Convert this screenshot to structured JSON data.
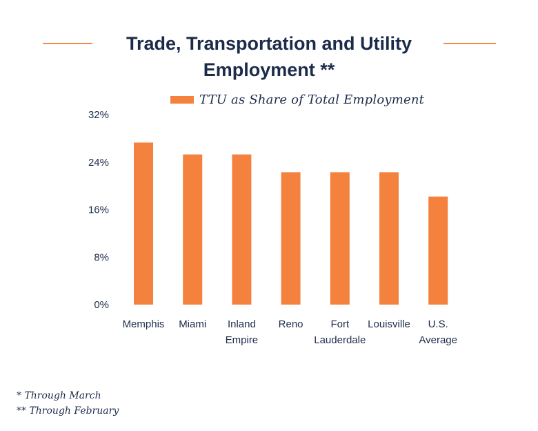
{
  "title_line1": "Trade, Transportation and Utility",
  "title_line2": "Employment **",
  "colors": {
    "bar": "#f5813e",
    "text": "#1c2b4a",
    "rule": "#f0884a"
  },
  "chart_data": {
    "type": "bar",
    "title": "Trade, Transportation and Utility Employment **",
    "legend": {
      "position": "top",
      "entries": [
        "TTU as Share of Total Employment"
      ]
    },
    "categories": [
      [
        "Memphis"
      ],
      [
        "Miami"
      ],
      [
        "Inland",
        "Empire"
      ],
      [
        "Reno"
      ],
      [
        "Fort",
        "Lauderdale"
      ],
      [
        "Louisville"
      ],
      [
        "U.S.",
        "Average"
      ]
    ],
    "series": [
      {
        "name": "TTU as Share of Total Employment",
        "values": [
          27.3,
          25.3,
          25.3,
          22.3,
          22.3,
          22.3,
          18.2
        ]
      }
    ],
    "yticks": [
      0,
      8,
      16,
      24,
      32
    ],
    "ytick_labels": [
      "0%",
      "8%",
      "16%",
      "24%",
      "32%"
    ],
    "ylim": [
      0,
      32
    ],
    "grid": false,
    "xlabel": "",
    "ylabel": ""
  },
  "footnotes": [
    "* Through March",
    "** Through February"
  ]
}
